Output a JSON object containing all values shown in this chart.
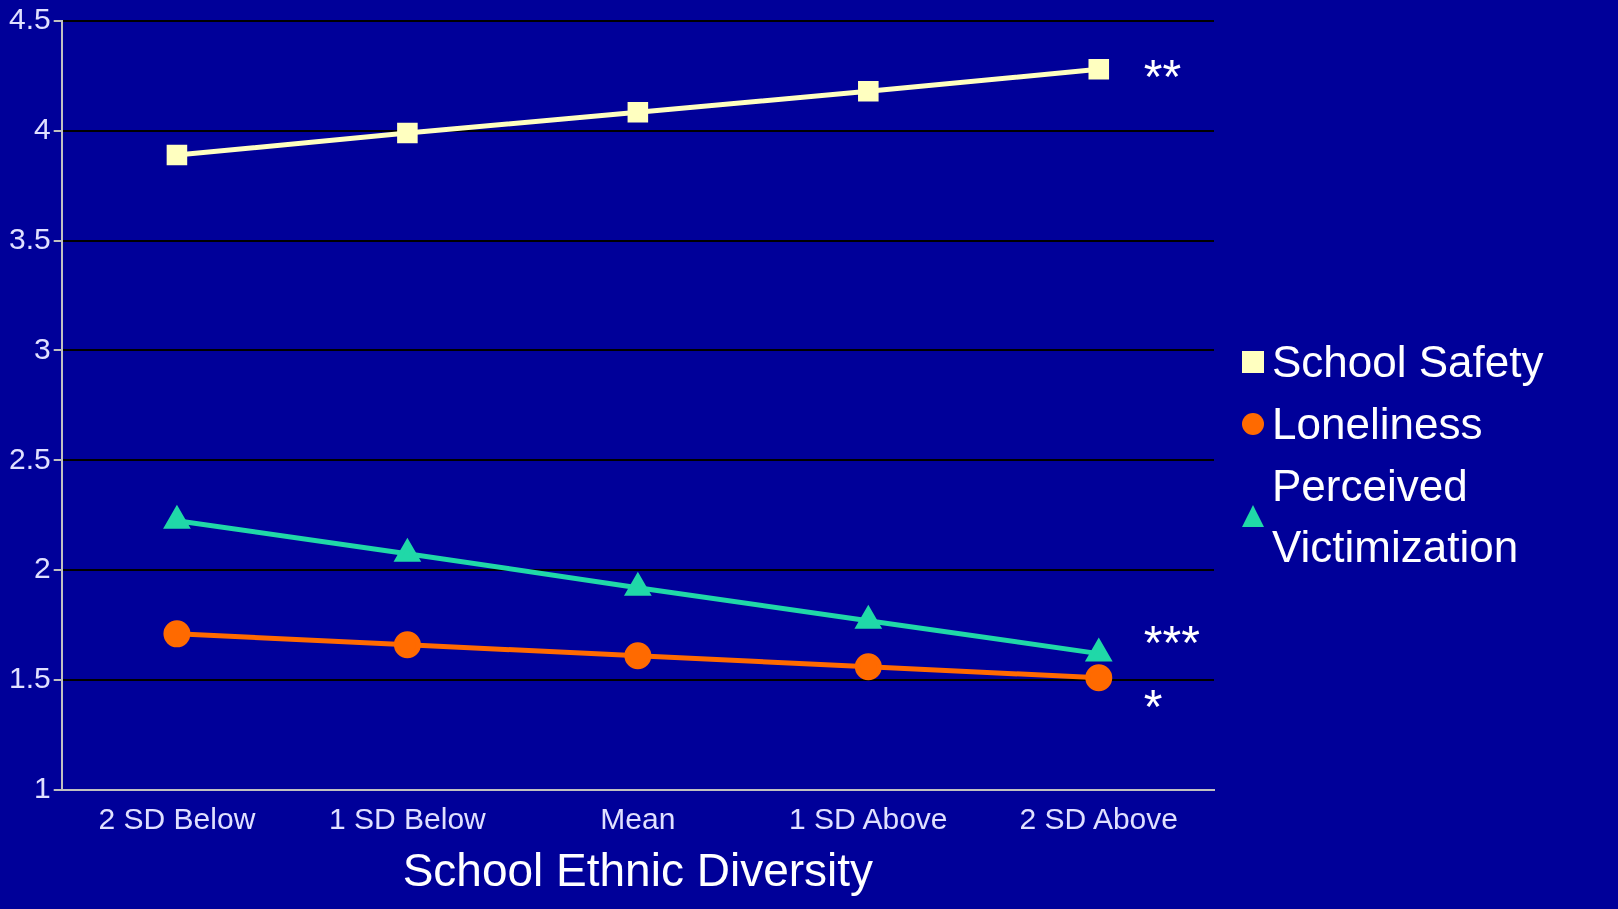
{
  "chart_data": {
    "type": "line",
    "xlabel": "School Ethnic Diversity",
    "categories": [
      "2 SD Below",
      "1 SD Below",
      "Mean",
      "1 SD Above",
      "2 SD Above"
    ],
    "series": [
      {
        "name": "School Safety",
        "color": "#ffffc0",
        "marker": "square",
        "values": [
          3.89,
          3.99,
          4.085,
          4.18,
          4.28
        ]
      },
      {
        "name": "Loneliness",
        "color": "#ff6a00",
        "marker": "circle",
        "values": [
          1.71,
          1.66,
          1.61,
          1.56,
          1.51
        ]
      },
      {
        "name": "Perceived Victimization",
        "color": "#20d8a8",
        "marker": "triangle",
        "values": [
          2.225,
          2.075,
          1.92,
          1.77,
          1.62
        ]
      }
    ],
    "ylim": [
      1,
      4.5
    ],
    "yticks": [
      1,
      1.5,
      2,
      2.5,
      3,
      3.5,
      4,
      4.5
    ],
    "grid": "y",
    "legend": "right",
    "line_style": "solid",
    "annotations": [
      {
        "text": "**",
        "x": "2 SD Above",
        "y": 4.28
      },
      {
        "text": "***",
        "x": "2 SD Above",
        "y": 1.62
      },
      {
        "text": "*",
        "x": "2 SD Above",
        "y": 1.51
      }
    ]
  }
}
